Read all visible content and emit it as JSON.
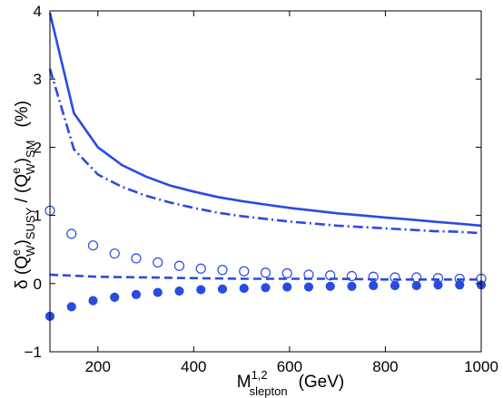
{
  "chart_data": {
    "type": "line",
    "xlim": [
      100,
      1000
    ],
    "ylim": [
      -1,
      4
    ],
    "xticks": [
      "200",
      "400",
      "600",
      "800",
      "1000"
    ],
    "yticks": [
      "−1",
      "0",
      "1",
      "2",
      "3",
      "4"
    ],
    "xtick_values": [
      200,
      400,
      600,
      800,
      1000
    ],
    "ytick_values": [
      -1,
      0,
      1,
      2,
      3,
      4
    ],
    "grid": false,
    "line_color": "#2a4be0",
    "xlabel": {
      "prefix": "M",
      "superscript": "1,2",
      "subscript": "slepton",
      "units": "(GeV)"
    },
    "ylabel": {
      "delta": "δ (Q",
      "sup1": "e",
      "sub1": "W",
      "mid": ")",
      "sub_susy": "SUSY",
      "slash": " / (Q",
      "sup2": "e",
      "sub2": "W",
      "close": ")",
      "sub_sm": "SM",
      "units": "(%)"
    },
    "series": [
      {
        "style": "solid",
        "x": [
          100,
          150,
          200,
          250,
          300,
          350,
          400,
          450,
          500,
          550,
          600,
          650,
          700,
          750,
          800,
          850,
          900,
          950,
          1000
        ],
        "y": [
          3.97,
          2.5,
          2.0,
          1.74,
          1.57,
          1.44,
          1.35,
          1.27,
          1.21,
          1.16,
          1.11,
          1.07,
          1.03,
          1.0,
          0.97,
          0.94,
          0.91,
          0.88,
          0.85
        ]
      },
      {
        "style": "dashdot",
        "x": [
          100,
          150,
          200,
          250,
          300,
          350,
          400,
          450,
          500,
          550,
          600,
          650,
          700,
          750,
          800,
          850,
          900,
          950,
          1000
        ],
        "y": [
          3.15,
          1.97,
          1.6,
          1.42,
          1.29,
          1.19,
          1.11,
          1.04,
          0.99,
          0.95,
          0.91,
          0.88,
          0.85,
          0.83,
          0.81,
          0.79,
          0.77,
          0.76,
          0.74
        ]
      },
      {
        "style": "dashed",
        "x": [
          100,
          200,
          300,
          400,
          500,
          600,
          700,
          800,
          900,
          1000
        ],
        "y": [
          0.13,
          0.1,
          0.09,
          0.08,
          0.07,
          0.07,
          0.07,
          0.06,
          0.06,
          0.06
        ]
      },
      {
        "style": "open-circle",
        "x": [
          100,
          145,
          190,
          235,
          280,
          325,
          370,
          415,
          460,
          505,
          550,
          595,
          640,
          685,
          730,
          775,
          820,
          865,
          910,
          955,
          1000
        ],
        "y": [
          1.07,
          0.73,
          0.56,
          0.44,
          0.37,
          0.31,
          0.26,
          0.22,
          0.2,
          0.18,
          0.16,
          0.15,
          0.13,
          0.12,
          0.11,
          0.1,
          0.09,
          0.09,
          0.08,
          0.07,
          0.07
        ]
      },
      {
        "style": "filled-circle",
        "x": [
          100,
          145,
          190,
          235,
          280,
          325,
          370,
          415,
          460,
          505,
          550,
          595,
          640,
          685,
          730,
          775,
          820,
          865,
          910,
          955,
          1000
        ],
        "y": [
          -0.48,
          -0.34,
          -0.25,
          -0.2,
          -0.16,
          -0.13,
          -0.11,
          -0.09,
          -0.08,
          -0.07,
          -0.06,
          -0.05,
          -0.05,
          -0.04,
          -0.04,
          -0.03,
          -0.03,
          -0.03,
          -0.02,
          -0.02,
          -0.02
        ]
      }
    ]
  }
}
